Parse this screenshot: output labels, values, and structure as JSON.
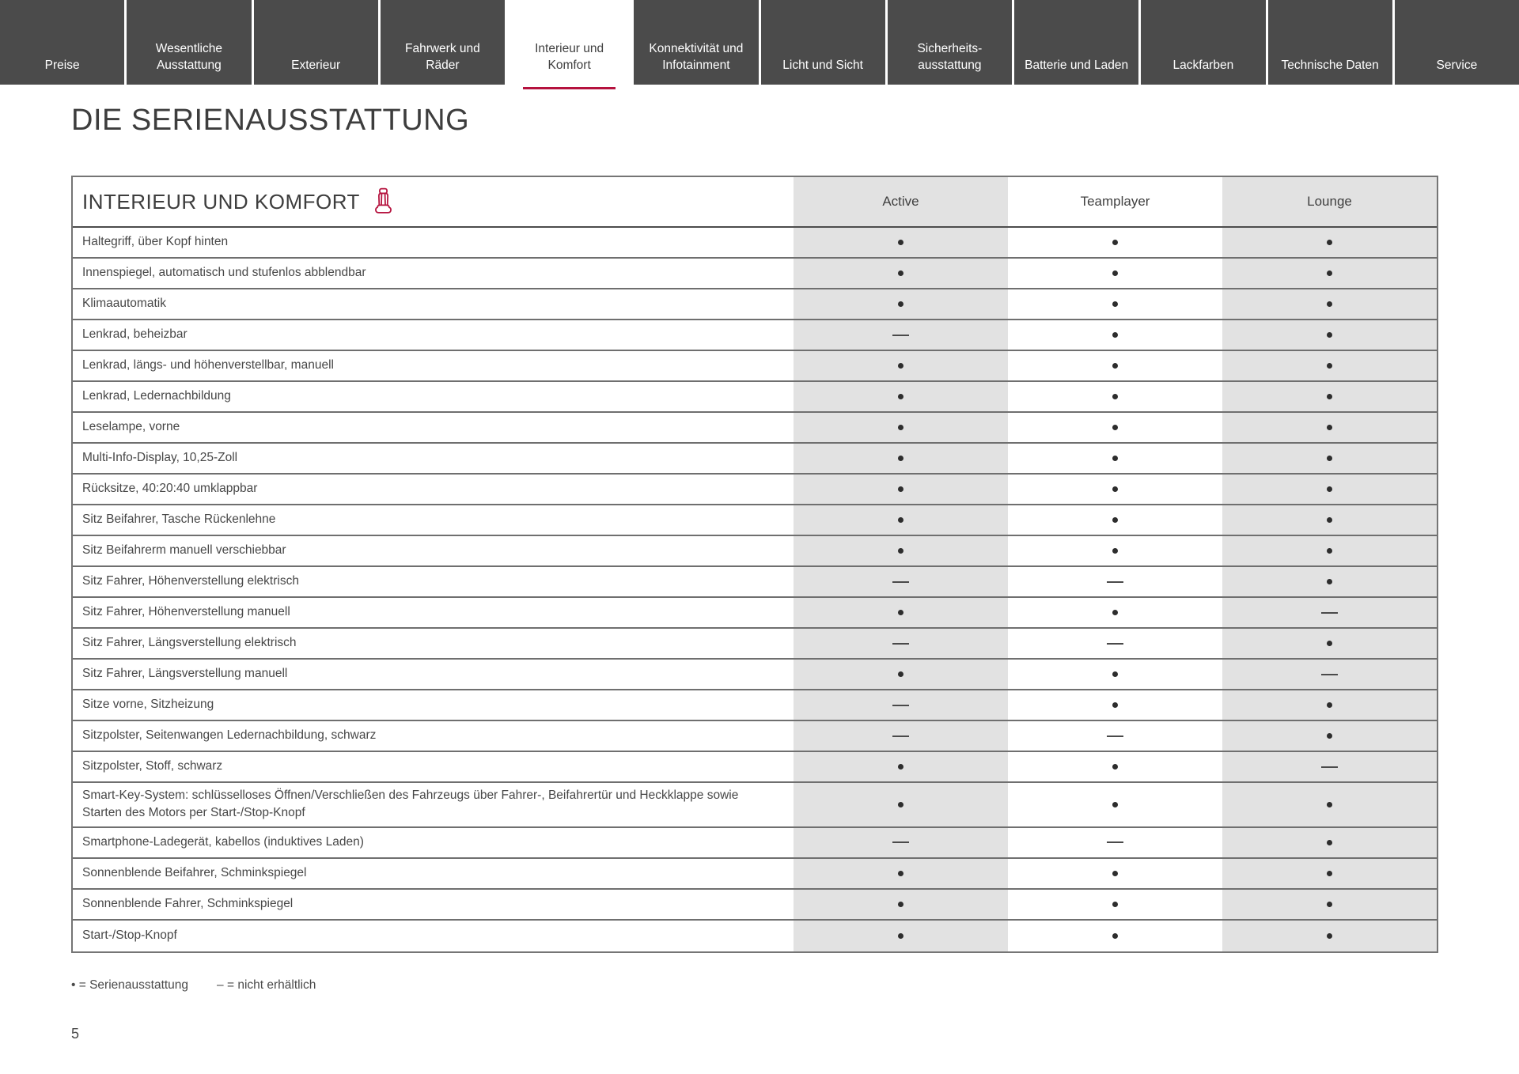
{
  "nav": {
    "tabs": [
      {
        "label": "Preise",
        "active": false
      },
      {
        "label": "Wesentliche Ausstattung",
        "active": false
      },
      {
        "label": "Exterieur",
        "active": false
      },
      {
        "label": "Fahrwerk und Räder",
        "active": false
      },
      {
        "label": "Interieur und Komfort",
        "active": true
      },
      {
        "label": "Konnektivität und Infotainment",
        "active": false
      },
      {
        "label": "Licht und Sicht",
        "active": false
      },
      {
        "label": "Sicherheits-ausstattung",
        "active": false
      },
      {
        "label": "Batterie und Laden",
        "active": false
      },
      {
        "label": "Lackfarben",
        "active": false
      },
      {
        "label": "Technische Daten",
        "active": false
      },
      {
        "label": "Service",
        "active": false
      }
    ]
  },
  "page": {
    "title": "DIE SERIENAUSSTATTUNG",
    "page_number": "5"
  },
  "table": {
    "section_title": "INTERIEUR UND KOMFORT",
    "section_icon": "car-seat-icon",
    "columns": [
      "Active",
      "Teamplayer",
      "Lounge"
    ],
    "rows": [
      {
        "feature": "Haltegriff, über Kopf hinten",
        "values": [
          "dot",
          "dot",
          "dot"
        ]
      },
      {
        "feature": "Innenspiegel, automatisch und stufenlos abblendbar",
        "values": [
          "dot",
          "dot",
          "dot"
        ]
      },
      {
        "feature": "Klimaautomatik",
        "values": [
          "dot",
          "dot",
          "dot"
        ]
      },
      {
        "feature": "Lenkrad, beheizbar",
        "values": [
          "dash",
          "dot",
          "dot"
        ]
      },
      {
        "feature": "Lenkrad, längs- und höhenverstellbar, manuell",
        "values": [
          "dot",
          "dot",
          "dot"
        ]
      },
      {
        "feature": "Lenkrad, Ledernachbildung",
        "values": [
          "dot",
          "dot",
          "dot"
        ]
      },
      {
        "feature": "Leselampe, vorne",
        "values": [
          "dot",
          "dot",
          "dot"
        ]
      },
      {
        "feature": "Multi-Info-Display, 10,25-Zoll",
        "values": [
          "dot",
          "dot",
          "dot"
        ]
      },
      {
        "feature": "Rücksitze, 40:20:40 umklappbar",
        "values": [
          "dot",
          "dot",
          "dot"
        ]
      },
      {
        "feature": "Sitz Beifahrer, Tasche Rückenlehne",
        "values": [
          "dot",
          "dot",
          "dot"
        ]
      },
      {
        "feature": "Sitz Beifahrerm manuell verschiebbar",
        "values": [
          "dot",
          "dot",
          "dot"
        ]
      },
      {
        "feature": "Sitz Fahrer, Höhenverstellung elektrisch",
        "values": [
          "dash",
          "dash",
          "dot"
        ]
      },
      {
        "feature": "Sitz Fahrer, Höhenverstellung manuell",
        "values": [
          "dot",
          "dot",
          "dash"
        ]
      },
      {
        "feature": "Sitz Fahrer, Längsverstellung elektrisch",
        "values": [
          "dash",
          "dash",
          "dot"
        ]
      },
      {
        "feature": "Sitz Fahrer, Längsverstellung manuell",
        "values": [
          "dot",
          "dot",
          "dash"
        ]
      },
      {
        "feature": "Sitze vorne, Sitzheizung",
        "values": [
          "dash",
          "dot",
          "dot"
        ]
      },
      {
        "feature": "Sitzpolster, Seitenwangen Ledernachbildung, schwarz",
        "values": [
          "dash",
          "dash",
          "dot"
        ]
      },
      {
        "feature": "Sitzpolster, Stoff, schwarz",
        "values": [
          "dot",
          "dot",
          "dash"
        ]
      },
      {
        "feature": "Smart-Key-System: schlüsselloses Öffnen/Verschließen des Fahrzeugs über Fahrer-, Beifahrertür und Heckklappe sowie Starten des Motors per Start-/Stop-Knopf",
        "values": [
          "dot",
          "dot",
          "dot"
        ]
      },
      {
        "feature": "Smartphone-Ladegerät, kabellos  (induktives Laden)",
        "values": [
          "dash",
          "dash",
          "dot"
        ]
      },
      {
        "feature": "Sonnenblende Beifahrer, Schminkspiegel",
        "values": [
          "dot",
          "dot",
          "dot"
        ]
      },
      {
        "feature": "Sonnenblende Fahrer, Schminkspiegel",
        "values": [
          "dot",
          "dot",
          "dot"
        ]
      },
      {
        "feature": "Start-/Stop-Knopf",
        "values": [
          "dot",
          "dot",
          "dot"
        ]
      }
    ]
  },
  "legend": {
    "dot_meaning": "• = Serienausstattung",
    "dash_meaning": "– = nicht erhältlich"
  },
  "colors": {
    "accent_red": "#B5123E",
    "tab_background": "#4B4B4B",
    "shaded_column": "#E2E2E2",
    "border": "#6F6F6F",
    "text": "#3F3F3F"
  }
}
